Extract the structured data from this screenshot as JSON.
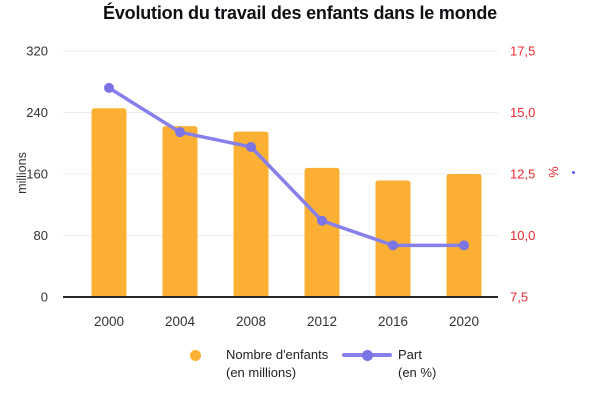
{
  "chart_data": {
    "type": "combo",
    "title": "Évolution du travail des enfants dans le monde",
    "categories": [
      "2000",
      "2004",
      "2008",
      "2012",
      "2016",
      "2020"
    ],
    "series": [
      {
        "name": "Nombre d'enfants (en millions)",
        "type": "bar",
        "axis": "left",
        "values": [
          245.5,
          222.3,
          215.2,
          168,
          151.6,
          160
        ]
      },
      {
        "name": "Part (en %)",
        "type": "line",
        "axis": "right",
        "values": [
          16.0,
          14.2,
          13.6,
          10.6,
          9.6,
          9.6
        ]
      }
    ],
    "left_axis": {
      "label": "millions",
      "min": 0,
      "max": 320,
      "ticks": [
        "320",
        "240",
        "160",
        "80",
        "0"
      ]
    },
    "right_axis": {
      "label": "%",
      "min": 7.5,
      "max": 17.5,
      "ticks": [
        "17,5",
        "15,0",
        "12,5",
        "10,0",
        "7,5"
      ]
    },
    "grid": "horizontal",
    "legend_position": "bottom"
  },
  "legend": {
    "bar": {
      "line1": "Nombre d'enfants",
      "line2": "(en millions)"
    },
    "line": {
      "line1": "Part",
      "line2": "(en %)"
    }
  },
  "colors": {
    "bar": "#FBB033",
    "line": "#8680EA",
    "marker": "#7B74E4",
    "right_axis_text": "#EE2B31",
    "left_axis_text": "#333333",
    "grid": "#ECECEC",
    "axis_line": "#26262B",
    "title_text": "#101014",
    "stray_dot": "#5A5AEF"
  }
}
